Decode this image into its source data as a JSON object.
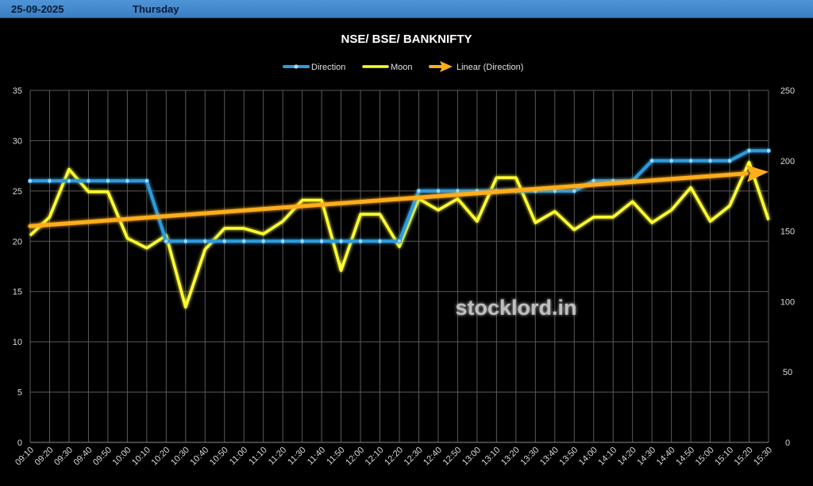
{
  "header": {
    "date": "25-09-2025",
    "day": "Thursday"
  },
  "watermark": "stocklord.in",
  "chart_data": {
    "type": "line",
    "title": "NSE/ BSE/ BANKNIFTY",
    "legend_placement": "top",
    "grid": true,
    "categories": [
      "09:10",
      "09:20",
      "09:30",
      "09:40",
      "09:50",
      "10:00",
      "10:10",
      "10:20",
      "10:30",
      "10:40",
      "10:50",
      "11:00",
      "11:10",
      "11:20",
      "11:30",
      "11:40",
      "11:50",
      "12:00",
      "12:10",
      "12:20",
      "12:30",
      "12:40",
      "12:50",
      "13:00",
      "13:10",
      "13:20",
      "13:30",
      "13:40",
      "13:50",
      "14:00",
      "14:10",
      "14:20",
      "14:30",
      "14:40",
      "14:50",
      "15:00",
      "15:10",
      "15:20",
      "15:30"
    ],
    "y_left": {
      "min": 0,
      "max": 35,
      "ticks": [
        0,
        5,
        10,
        15,
        20,
        25,
        30,
        35
      ]
    },
    "y_right": {
      "min": 0,
      "max": 250,
      "ticks": [
        0,
        50,
        100,
        150,
        200,
        250
      ]
    },
    "series": [
      {
        "name": "Direction",
        "axis": "left",
        "color": "#2e9bdc",
        "values": [
          26,
          26,
          26,
          26,
          26,
          26,
          26,
          20,
          20,
          20,
          20,
          20,
          20,
          20,
          20,
          20,
          20,
          20,
          20,
          20,
          25,
          25,
          25,
          25,
          25,
          25,
          25,
          25,
          25,
          26,
          26,
          26,
          28,
          28,
          28,
          28,
          28,
          29,
          29
        ]
      },
      {
        "name": "Moon",
        "axis": "right",
        "color": "#ffff33",
        "values": [
          147,
          160,
          194,
          178,
          178,
          145,
          138,
          147,
          96,
          137,
          152,
          152,
          148,
          157,
          172,
          172,
          122,
          162,
          162,
          139,
          173,
          165,
          173,
          157,
          188,
          188,
          156,
          164,
          151,
          160,
          160,
          171,
          156,
          165,
          181,
          157,
          168,
          199,
          158
        ]
      }
    ],
    "trendline": {
      "name": "Linear (Direction)",
      "of_series": "Direction",
      "color": "#ffad1a",
      "start": 21.5,
      "end": 26.9
    }
  }
}
